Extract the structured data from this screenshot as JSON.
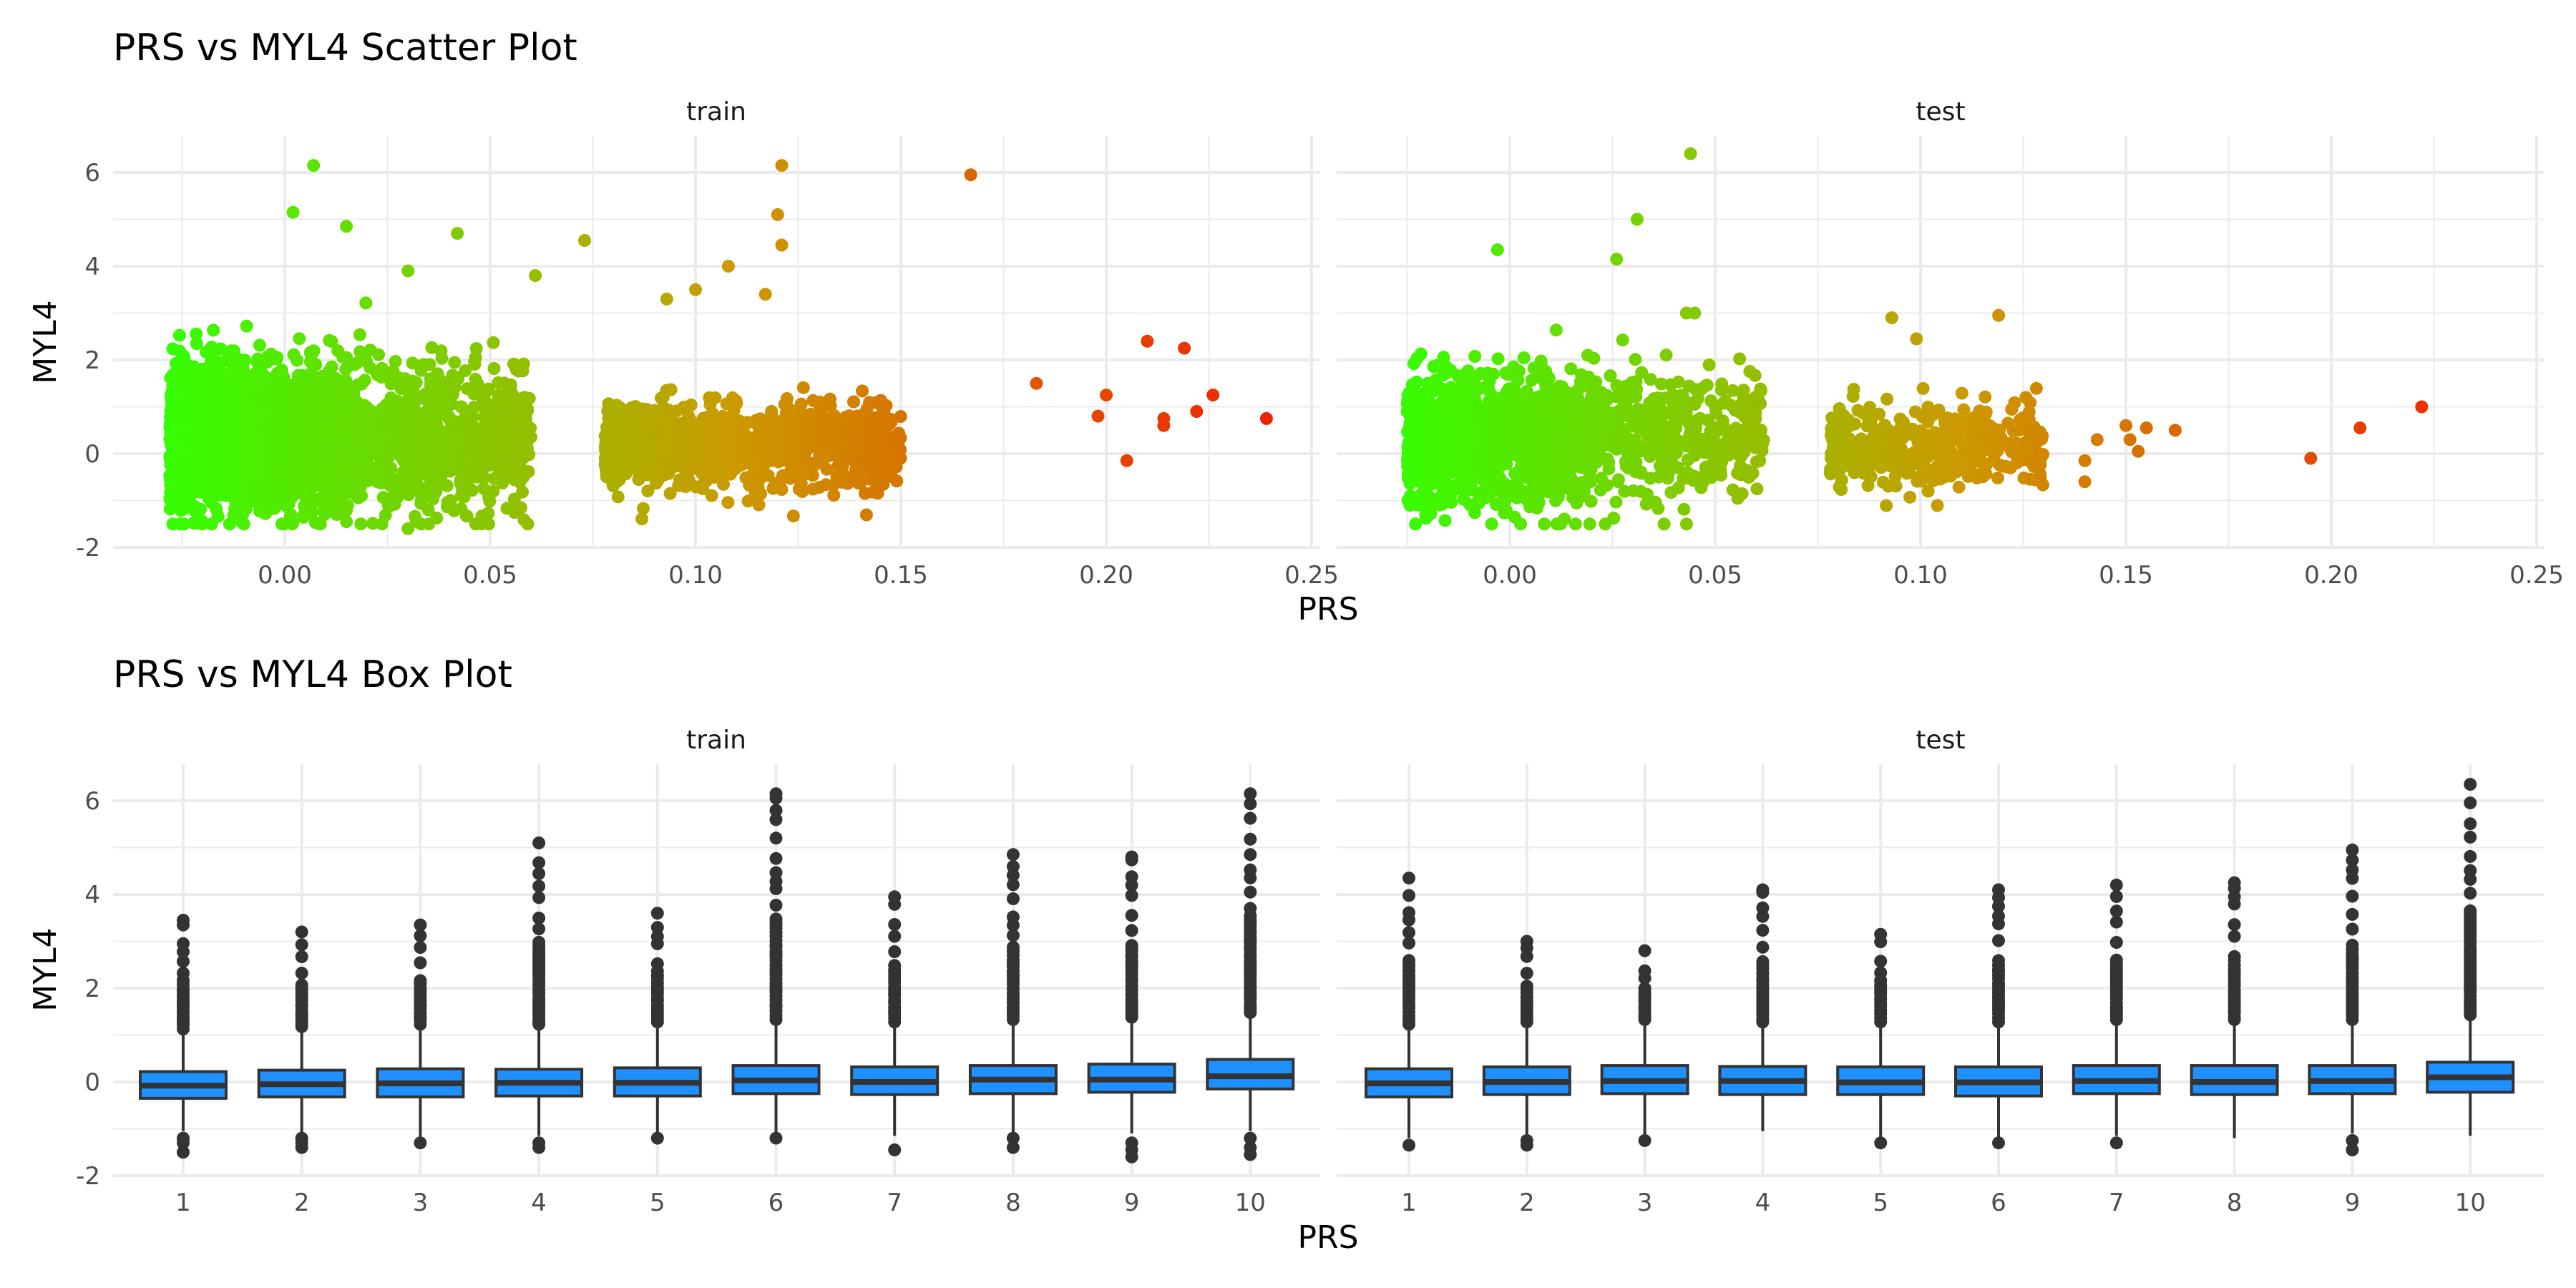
{
  "chart_data": [
    {
      "type": "scatter",
      "title": "PRS vs MYL4 Scatter Plot",
      "xlabel": "PRS",
      "ylabel": "MYL4",
      "xlim": [
        -0.03,
        0.25
      ],
      "ylim": [
        -2,
        6.5
      ],
      "x_ticks": [
        0.0,
        0.05,
        0.1,
        0.15,
        0.2,
        0.25
      ],
      "x_tick_labels": [
        "0.00",
        "0.05",
        "0.10",
        "0.15",
        "0.20",
        "0.25"
      ],
      "y_ticks": [
        -2,
        0,
        2,
        4,
        6
      ],
      "y_tick_labels": [
        "-2",
        "0",
        "2",
        "4",
        "6"
      ],
      "color_scale": {
        "low": "#33ff00",
        "mid": "#cc9900",
        "high": "#ee2200"
      },
      "grid": true,
      "legend": "none",
      "panels": [
        {
          "name": "train",
          "clusters": [
            {
              "x_range": [
                -0.028,
                0.06
              ],
              "y_mean": 0.4,
              "y_sd": 0.75,
              "n": 2800
            },
            {
              "x_range": [
                0.078,
                0.15
              ],
              "y_mean": 0.15,
              "y_sd": 0.45,
              "n": 1000
            }
          ],
          "points": [
            [
              0.007,
              6.15
            ],
            [
              0.121,
              6.15
            ],
            [
              0.167,
              5.95
            ],
            [
              0.002,
              5.15
            ],
            [
              0.12,
              5.1
            ],
            [
              0.015,
              4.85
            ],
            [
              0.042,
              4.7
            ],
            [
              0.073,
              4.55
            ],
            [
              0.121,
              4.45
            ],
            [
              0.108,
              4.0
            ],
            [
              0.061,
              3.8
            ],
            [
              0.1,
              3.5
            ],
            [
              0.03,
              3.9
            ],
            [
              0.117,
              3.4
            ],
            [
              0.093,
              3.3
            ],
            [
              0.183,
              1.5
            ],
            [
              0.21,
              2.4
            ],
            [
              0.219,
              2.25
            ],
            [
              0.2,
              1.25
            ],
            [
              0.198,
              0.8
            ],
            [
              0.214,
              0.75
            ],
            [
              0.214,
              0.6
            ],
            [
              0.222,
              0.9
            ],
            [
              0.226,
              1.25
            ],
            [
              0.205,
              -0.15
            ],
            [
              0.239,
              0.75
            ],
            [
              0.03,
              -1.6
            ],
            [
              0.032,
              -1.45
            ],
            [
              0.015,
              -1.45
            ]
          ]
        },
        {
          "name": "test",
          "clusters": [
            {
              "x_range": [
                -0.025,
                0.062
              ],
              "y_mean": 0.35,
              "y_sd": 0.7,
              "n": 1500
            },
            {
              "x_range": [
                0.078,
                0.13
              ],
              "y_mean": 0.15,
              "y_sd": 0.45,
              "n": 420
            }
          ],
          "points": [
            [
              0.044,
              6.4
            ],
            [
              0.031,
              5.0
            ],
            [
              -0.003,
              4.35
            ],
            [
              0.026,
              4.15
            ],
            [
              0.045,
              3.0
            ],
            [
              0.043,
              3.0
            ],
            [
              0.093,
              2.9
            ],
            [
              0.119,
              2.95
            ],
            [
              0.099,
              2.45
            ],
            [
              -0.02,
              1.5
            ],
            [
              0.143,
              0.3
            ],
            [
              0.15,
              0.6
            ],
            [
              0.155,
              0.55
            ],
            [
              0.162,
              0.5
            ],
            [
              0.151,
              0.3
            ],
            [
              0.153,
              0.05
            ],
            [
              0.14,
              -0.15
            ],
            [
              0.14,
              -0.6
            ],
            [
              0.195,
              -0.1
            ],
            [
              0.207,
              0.55
            ],
            [
              0.222,
              1.0
            ],
            [
              0.016,
              -1.5
            ]
          ]
        }
      ]
    },
    {
      "type": "box",
      "title": "PRS vs MYL4 Box Plot",
      "xlabel": "PRS",
      "ylabel": "MYL4",
      "categories": [
        "1",
        "2",
        "3",
        "4",
        "5",
        "6",
        "7",
        "8",
        "9",
        "10"
      ],
      "ylim": [
        -2,
        6.5
      ],
      "y_ticks": [
        -2,
        0,
        2,
        4,
        6
      ],
      "y_tick_labels": [
        "-2",
        "0",
        "2",
        "4",
        "6"
      ],
      "fill_color": "#1e90ff",
      "grid": true,
      "panels": [
        {
          "name": "train",
          "boxes": [
            {
              "q1": -0.35,
              "median": -0.08,
              "q3": 0.22,
              "lower": -1.05,
              "upper": 1.05,
              "out_low": [
                -1.2,
                -1.3,
                -1.5
              ],
              "out_high_max": 3.45
            },
            {
              "q1": -0.32,
              "median": -0.05,
              "q3": 0.25,
              "lower": -1.1,
              "upper": 1.1,
              "out_low": [
                -1.2,
                -1.3,
                -1.4
              ],
              "out_high_max": 3.2
            },
            {
              "q1": -0.32,
              "median": -0.03,
              "q3": 0.28,
              "lower": -1.2,
              "upper": 1.15,
              "out_low": [
                -1.3
              ],
              "out_high_max": 3.35
            },
            {
              "q1": -0.3,
              "median": -0.02,
              "q3": 0.27,
              "lower": -1.15,
              "upper": 1.15,
              "out_low": [
                -1.3,
                -1.4
              ],
              "out_high_max": 5.1
            },
            {
              "q1": -0.3,
              "median": -0.02,
              "q3": 0.3,
              "lower": -1.15,
              "upper": 1.2,
              "out_low": [
                -1.2
              ],
              "out_high_max": 3.6
            },
            {
              "q1": -0.25,
              "median": 0.03,
              "q3": 0.35,
              "lower": -1.1,
              "upper": 1.25,
              "out_low": [
                -1.2
              ],
              "out_high_max": 6.15
            },
            {
              "q1": -0.27,
              "median": 0.0,
              "q3": 0.32,
              "lower": -1.15,
              "upper": 1.2,
              "out_low": [
                -1.45
              ],
              "out_high_max": 3.95
            },
            {
              "q1": -0.25,
              "median": 0.05,
              "q3": 0.35,
              "lower": -1.1,
              "upper": 1.25,
              "out_low": [
                -1.2,
                -1.4
              ],
              "out_high_max": 4.85
            },
            {
              "q1": -0.22,
              "median": 0.05,
              "q3": 0.38,
              "lower": -1.1,
              "upper": 1.3,
              "out_low": [
                -1.3,
                -1.45,
                -1.6
              ],
              "out_high_max": 4.8
            },
            {
              "q1": -0.15,
              "median": 0.12,
              "q3": 0.48,
              "lower": -1.05,
              "upper": 1.4,
              "out_low": [
                -1.2,
                -1.4,
                -1.55
              ],
              "out_high_max": 6.15
            }
          ]
        },
        {
          "name": "test",
          "boxes": [
            {
              "q1": -0.32,
              "median": -0.03,
              "q3": 0.28,
              "lower": -1.2,
              "upper": 1.15,
              "out_low": [
                -1.35
              ],
              "out_high_max": 4.35
            },
            {
              "q1": -0.27,
              "median": 0.0,
              "q3": 0.32,
              "lower": -1.15,
              "upper": 1.2,
              "out_low": [
                -1.25,
                -1.35
              ],
              "out_high_max": 3.0
            },
            {
              "q1": -0.25,
              "median": 0.02,
              "q3": 0.35,
              "lower": -1.2,
              "upper": 1.25,
              "out_low": [
                -1.25
              ],
              "out_high_max": 2.8
            },
            {
              "q1": -0.27,
              "median": 0.02,
              "q3": 0.33,
              "lower": -1.05,
              "upper": 1.2,
              "out_low": [],
              "out_high_max": 4.1
            },
            {
              "q1": -0.27,
              "median": -0.01,
              "q3": 0.32,
              "lower": -1.2,
              "upper": 1.2,
              "out_low": [
                -1.3
              ],
              "out_high_max": 3.15
            },
            {
              "q1": -0.3,
              "median": -0.01,
              "q3": 0.32,
              "lower": -1.2,
              "upper": 1.2,
              "out_low": [
                -1.3
              ],
              "out_high_max": 4.1
            },
            {
              "q1": -0.25,
              "median": 0.02,
              "q3": 0.35,
              "lower": -1.15,
              "upper": 1.25,
              "out_low": [
                -1.3
              ],
              "out_high_max": 4.2
            },
            {
              "q1": -0.27,
              "median": 0.0,
              "q3": 0.35,
              "lower": -1.2,
              "upper": 1.25,
              "out_low": [],
              "out_high_max": 4.25
            },
            {
              "q1": -0.25,
              "median": 0.02,
              "q3": 0.35,
              "lower": -1.1,
              "upper": 1.25,
              "out_low": [
                -1.25,
                -1.45
              ],
              "out_high_max": 4.95
            },
            {
              "q1": -0.22,
              "median": 0.1,
              "q3": 0.42,
              "lower": -1.15,
              "upper": 1.35,
              "out_low": [],
              "out_high_max": 6.35
            }
          ]
        }
      ]
    }
  ]
}
